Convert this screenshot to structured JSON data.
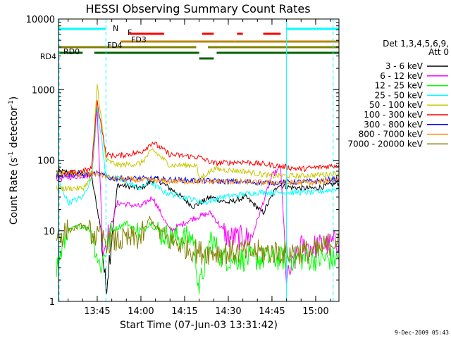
{
  "chart_data": {
    "type": "line",
    "title": "HESSI Observing Summary Count Rates",
    "xlabel": "Start Time (07-Jun-03 13:31:42)",
    "ylabel": "Count Rate (s⁻¹ detector⁻¹)",
    "ylabel_main": "Count Rate (s",
    "ylabel_exp1": "-1",
    "ylabel_mid": " detector",
    "ylabel_exp2": "-1",
    "ylabel_end": ")",
    "yscale": "log",
    "ylim": [
      1,
      10000
    ],
    "xlim": [
      "13:31:42",
      "15:08:00"
    ],
    "x_ticks": [
      "13:45",
      "14:00",
      "14:15",
      "14:30",
      "14:45",
      "15:00"
    ],
    "y_ticks": [
      "1",
      "10",
      "100",
      "1000",
      "10000"
    ],
    "legend_header": [
      "Det 1,3,4,5,6,9,",
      "Att 0"
    ],
    "legend_position": "right",
    "footer": "9-Dec-2009 05:43",
    "flags": [
      {
        "label": "N",
        "color": "#00ffff",
        "segments": [
          [
            "13:31",
            "13:48"
          ],
          [
            "14:50",
            "15:08"
          ]
        ]
      },
      {
        "label": "F",
        "color": "#ff0000",
        "segments": [
          [
            "13:56",
            "14:08"
          ],
          [
            "14:21",
            "14:25"
          ],
          [
            "14:33",
            "14:35"
          ],
          [
            "14:42",
            "14:48"
          ]
        ]
      },
      {
        "label": "FD3",
        "color": "#b8860b",
        "segments": [
          [
            "13:53",
            "14:32"
          ],
          [
            "14:32",
            "15:08"
          ]
        ]
      },
      {
        "label": "FD4",
        "color": "#808000",
        "segments": [
          [
            "13:31",
            "14:19"
          ],
          [
            "14:23",
            "15:08"
          ]
        ]
      },
      {
        "label": "RD0",
        "color": "#006400",
        "segments": [
          [
            "13:31",
            "13:40"
          ],
          [
            "13:44",
            "14:20"
          ],
          [
            "14:26",
            "15:08"
          ]
        ]
      },
      {
        "label": "RD4",
        "color": "#006400",
        "segments": [
          [
            "14:20",
            "14:25"
          ]
        ]
      }
    ],
    "vertical_markers": [
      {
        "time": "13:31:42",
        "style": "dashed",
        "color": "#00ffff"
      },
      {
        "time": "13:48",
        "style": "dashed",
        "color": "#00ffff"
      },
      {
        "time": "14:50",
        "style": "solid",
        "color": "#00ffff"
      },
      {
        "time": "15:06",
        "style": "dashed",
        "color": "#00ffff"
      }
    ],
    "series": [
      {
        "name": "3 - 6 keV",
        "color": "#000000",
        "x": [
          "13:31",
          "13:40",
          "13:43",
          "13:46",
          "13:48",
          "13:52",
          "14:00",
          "14:05",
          "14:12",
          "14:18",
          "14:24",
          "14:30",
          "14:36",
          "14:42",
          "14:47",
          "14:50",
          "14:55",
          "15:00",
          "15:08"
        ],
        "values": [
          70,
          65,
          60,
          12,
          1.5,
          45,
          40,
          55,
          35,
          22,
          30,
          25,
          30,
          18,
          45,
          42,
          40,
          40,
          48
        ]
      },
      {
        "name": "6 - 12 keV",
        "color": "#ff00ff",
        "x": [
          "13:31",
          "13:40",
          "13:43",
          "13:45",
          "13:47",
          "13:52",
          "14:00",
          "14:04",
          "14:10",
          "14:18",
          "14:24",
          "14:30",
          "14:38",
          "14:45",
          "14:48",
          "14:50",
          "14:55",
          "15:00",
          "15:08"
        ],
        "values": [
          55,
          60,
          60,
          500,
          5,
          25,
          22,
          30,
          10,
          15,
          18,
          8,
          8,
          60,
          80,
          2,
          6,
          6,
          7
        ]
      },
      {
        "name": "12 - 25 keV",
        "color": "#00ff00",
        "x": [
          "13:31",
          "13:35",
          "13:40",
          "13:43",
          "13:46",
          "13:50",
          "13:55",
          "14:00",
          "14:03",
          "14:07",
          "14:12",
          "14:18",
          "14:20",
          "14:24",
          "14:28",
          "14:35",
          "14:45",
          "14:50",
          "15:00",
          "15:08"
        ],
        "values": [
          3,
          10,
          12,
          10,
          3,
          10,
          13,
          9,
          13,
          9,
          8,
          8,
          1.5,
          8,
          4,
          4,
          4,
          4,
          4,
          4
        ]
      },
      {
        "name": "25 - 50 keV",
        "color": "#00ffff",
        "x": [
          "13:31",
          "13:35",
          "13:40",
          "13:43",
          "13:45",
          "13:48",
          "13:52",
          "14:00",
          "14:03",
          "14:08",
          "14:15",
          "14:22",
          "14:28",
          "14:40",
          "14:50",
          "15:00",
          "15:08"
        ],
        "values": [
          60,
          25,
          30,
          55,
          600,
          60,
          55,
          40,
          50,
          35,
          30,
          25,
          30,
          35,
          35,
          35,
          40
        ]
      },
      {
        "name": "50 - 100 keV",
        "color": "#c8c800",
        "x": [
          "13:31",
          "13:40",
          "13:43",
          "13:45",
          "13:48",
          "13:52",
          "14:00",
          "14:04",
          "14:10",
          "14:19",
          "14:20",
          "14:25",
          "14:35",
          "14:45",
          "14:55",
          "15:08"
        ],
        "values": [
          40,
          40,
          55,
          1200,
          100,
          85,
          90,
          140,
          85,
          85,
          55,
          75,
          70,
          60,
          60,
          65
        ]
      },
      {
        "name": "100 - 300 keV",
        "color": "#ff0000",
        "x": [
          "13:31",
          "13:40",
          "13:43",
          "13:45",
          "13:48",
          "13:52",
          "14:00",
          "14:04",
          "14:10",
          "14:20",
          "14:25",
          "14:35",
          "14:45",
          "14:55",
          "15:08"
        ],
        "values": [
          60,
          70,
          75,
          700,
          120,
          115,
          130,
          180,
          120,
          110,
          90,
          95,
          85,
          75,
          85
        ]
      },
      {
        "name": "300 - 800 keV",
        "color": "#0000ff",
        "x": [
          "13:31",
          "13:40",
          "13:45",
          "13:50",
          "14:00",
          "14:15",
          "14:30",
          "14:45",
          "15:00",
          "15:08"
        ],
        "values": [
          62,
          62,
          65,
          55,
          55,
          52,
          50,
          48,
          50,
          55
        ]
      },
      {
        "name": "800 - 7000 keV",
        "color": "#ff8c00",
        "x": [
          "13:31",
          "13:40",
          "13:45",
          "13:50",
          "14:00",
          "14:15",
          "14:30",
          "14:45",
          "15:00",
          "15:08"
        ],
        "values": [
          65,
          62,
          65,
          55,
          52,
          50,
          50,
          48,
          48,
          55
        ]
      },
      {
        "name": "7000 - 20000 keV",
        "color": "#808000",
        "x": [
          "13:31",
          "13:35",
          "13:40",
          "13:45",
          "13:50",
          "14:00",
          "14:03",
          "14:08",
          "14:15",
          "14:20",
          "14:30",
          "14:40",
          "14:50",
          "15:00",
          "15:08"
        ],
        "values": [
          8,
          10,
          12,
          8,
          7,
          8,
          15,
          8,
          6,
          5,
          5,
          5,
          5,
          5,
          8
        ]
      }
    ]
  }
}
